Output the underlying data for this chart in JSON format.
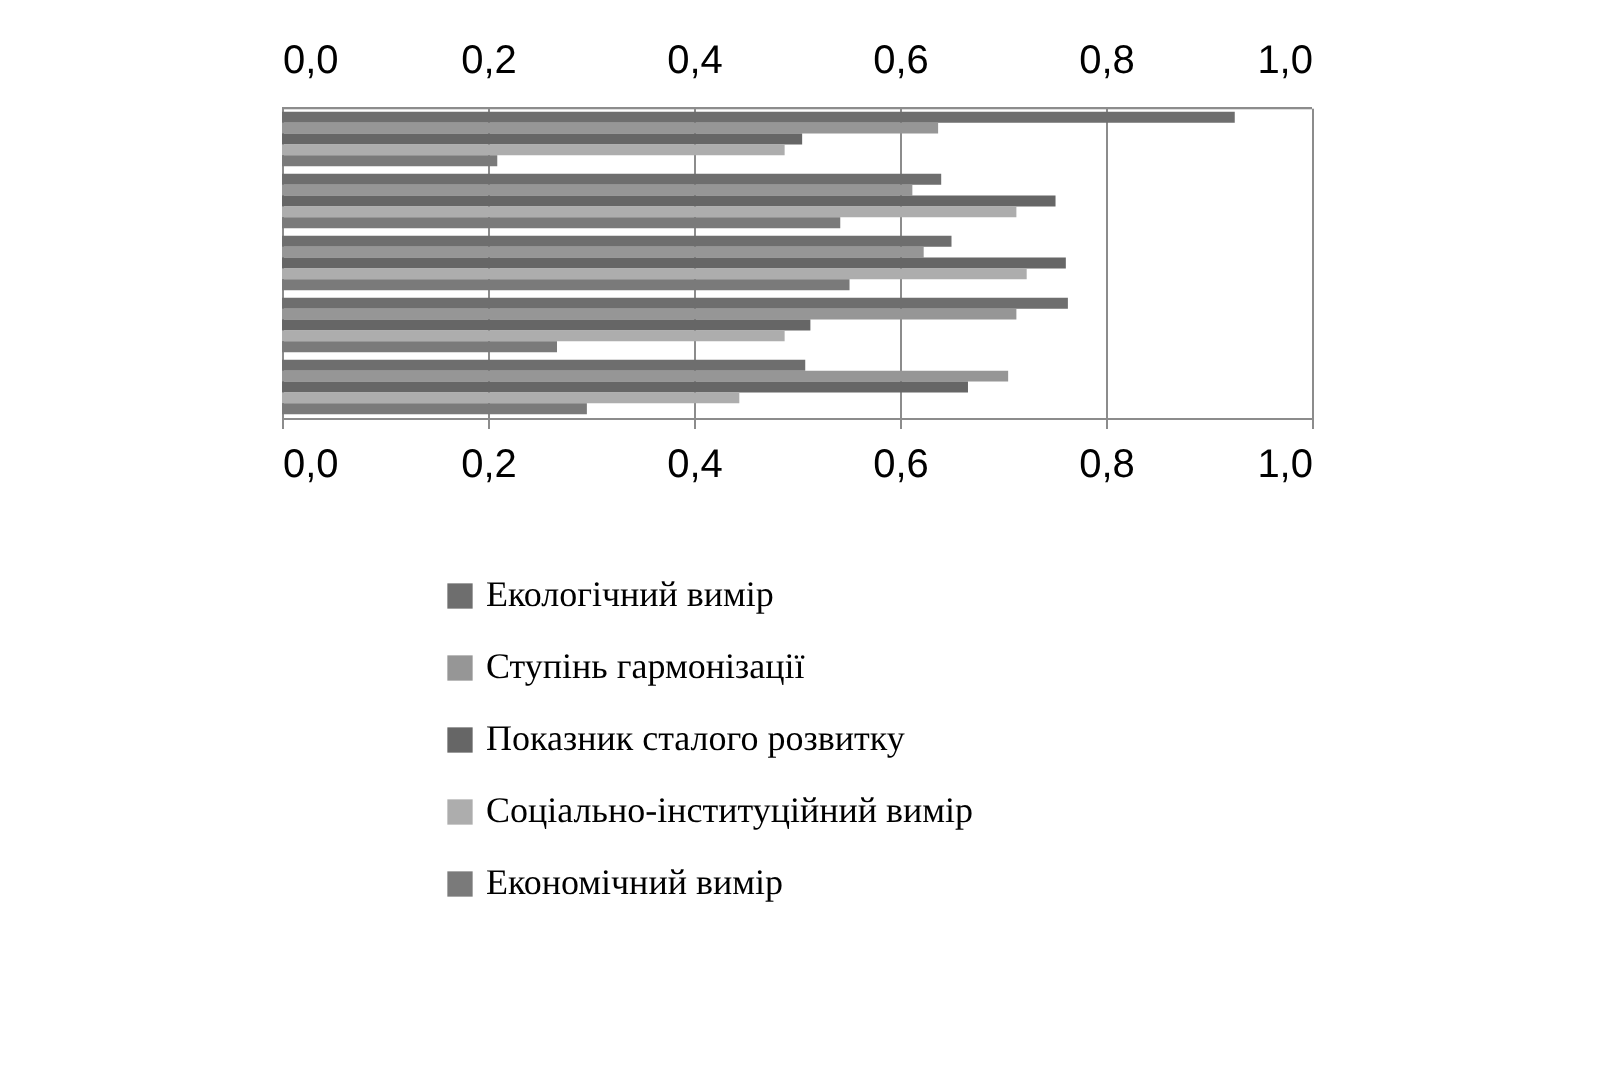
{
  "chart_data": {
    "type": "bar",
    "orientation": "horizontal",
    "categories": [
      null,
      null,
      null,
      null,
      null
    ],
    "series": [
      {
        "name": "Екологічний вимір",
        "color": "#6e6e6e",
        "values": [
          0.925,
          0.64,
          0.65,
          0.763,
          0.508
        ]
      },
      {
        "name": "Ступінь гармонізації",
        "color": "#969696",
        "values": [
          0.637,
          0.612,
          0.623,
          0.713,
          0.705
        ]
      },
      {
        "name": "Показник сталого розвитку",
        "color": "#666666",
        "values": [
          0.505,
          0.751,
          0.761,
          0.513,
          0.666
        ]
      },
      {
        "name": "Соціально-інституційний вимір",
        "color": "#adadad",
        "values": [
          0.488,
          0.713,
          0.723,
          0.488,
          0.444
        ]
      },
      {
        "name": "Економічний вимір",
        "color": "#7a7a7a",
        "values": [
          0.209,
          0.542,
          0.551,
          0.267,
          0.296
        ]
      }
    ],
    "xlim": [
      0,
      1
    ],
    "xticks": [
      {
        "value": 0,
        "label": "0,0"
      },
      {
        "value": 0.2,
        "label": "0,2"
      },
      {
        "value": 0.4,
        "label": "0,4"
      },
      {
        "value": 0.6,
        "label": "0,6"
      },
      {
        "value": 0.8,
        "label": "0,8"
      },
      {
        "value": 1,
        "label": "1,0"
      }
    ],
    "x2lim": [
      0,
      1
    ],
    "x2ticks": [
      {
        "value": 0,
        "label": "0,0"
      },
      {
        "value": 0.2,
        "label": "0,2"
      },
      {
        "value": 0.4,
        "label": "0,4"
      },
      {
        "value": 0.6,
        "label": "0,6"
      },
      {
        "value": 0.8,
        "label": "0,8"
      },
      {
        "value": 1,
        "label": "1,0"
      }
    ],
    "grid": "x",
    "legend": "bottom"
  }
}
